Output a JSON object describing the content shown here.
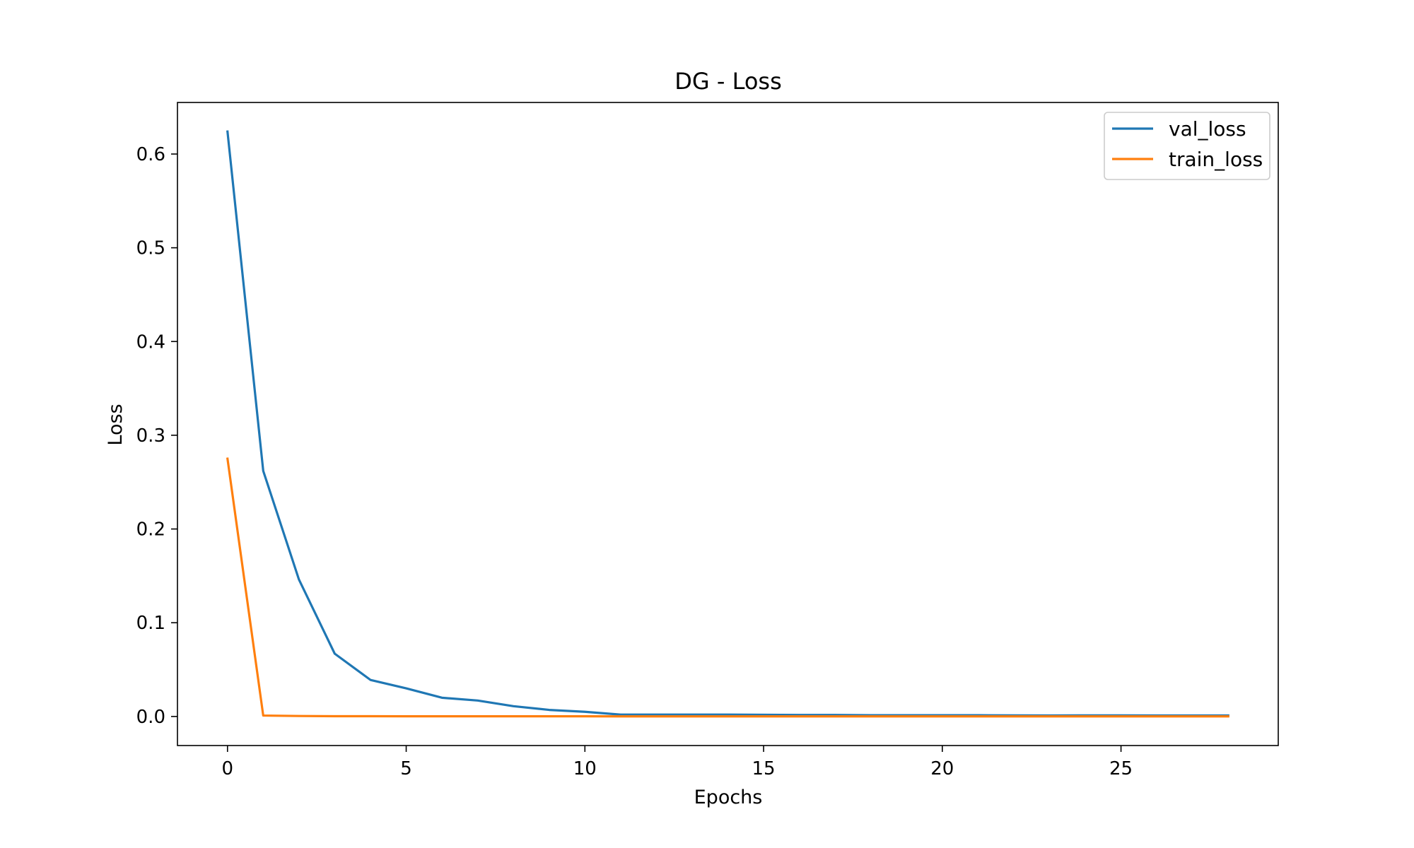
{
  "chart_data": {
    "type": "line",
    "title": "DG - Loss",
    "xlabel": "Epochs",
    "ylabel": "Loss",
    "xlim": [
      -1.4,
      29.4
    ],
    "ylim": [
      -0.031,
      0.655
    ],
    "xticks": [
      0,
      5,
      10,
      15,
      20,
      25
    ],
    "yticks": [
      0.0,
      0.1,
      0.2,
      0.3,
      0.4,
      0.5,
      0.6
    ],
    "ytick_labels": [
      "0.0",
      "0.1",
      "0.2",
      "0.3",
      "0.4",
      "0.5",
      "0.6"
    ],
    "grid": false,
    "legend_position": "top-right",
    "x": [
      0,
      1,
      2,
      3,
      4,
      5,
      6,
      7,
      8,
      9,
      10,
      11,
      12,
      13,
      14,
      15,
      16,
      17,
      18,
      19,
      20,
      21,
      22,
      23,
      24,
      25,
      26,
      27,
      28
    ],
    "series": [
      {
        "name": "val_loss",
        "color": "#1f77b4",
        "values": [
          0.624,
          0.262,
          0.146,
          0.067,
          0.039,
          0.03,
          0.02,
          0.017,
          0.011,
          0.007,
          0.005,
          0.002,
          0.002,
          0.002,
          0.002,
          0.0018,
          0.0016,
          0.0016,
          0.0013,
          0.0013,
          0.0013,
          0.0013,
          0.0012,
          0.0011,
          0.0012,
          0.0012,
          0.0011,
          0.0011,
          0.0011
        ]
      },
      {
        "name": "train_loss",
        "color": "#ff7f0e",
        "values": [
          0.275,
          0.001,
          0.0005,
          0.0003,
          0.0003,
          0.0002,
          0.0002,
          0.0002,
          0.0002,
          0.0002,
          0.0002,
          0.0001,
          0.0001,
          0.0001,
          0.0001,
          0.0001,
          0.0001,
          0.0001,
          0.0001,
          0.0001,
          0.0001,
          0.0001,
          0.0001,
          0.0001,
          0.0001,
          0.0001,
          0.0001,
          0.0001,
          0.0001
        ]
      }
    ]
  }
}
